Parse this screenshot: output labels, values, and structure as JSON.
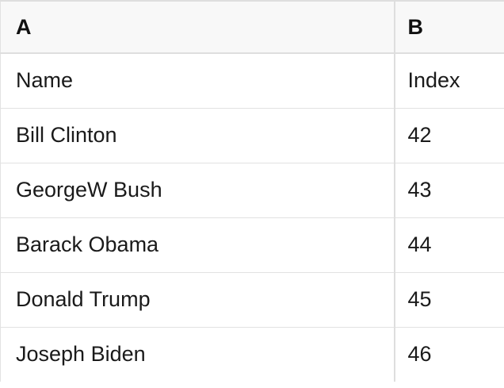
{
  "app": {
    "name": "spreadsheet-table-view"
  },
  "colors": {
    "header_bg": "#f8f8f8",
    "border": "#dedede",
    "row_border": "#e2e2e2",
    "text": "#1a1a1a",
    "header_text": "#111111"
  },
  "table": {
    "column_headers": [
      {
        "label": "A"
      },
      {
        "label": "B"
      }
    ],
    "rows": [
      {
        "cells": [
          "Name",
          "Index"
        ]
      },
      {
        "cells": [
          "Bill Clinton",
          "42"
        ]
      },
      {
        "cells": [
          "GeorgeW Bush",
          "43"
        ]
      },
      {
        "cells": [
          "Barack Obama",
          "44"
        ]
      },
      {
        "cells": [
          "Donald Trump",
          "45"
        ]
      },
      {
        "cells": [
          "Joseph Biden",
          "46"
        ]
      }
    ]
  }
}
